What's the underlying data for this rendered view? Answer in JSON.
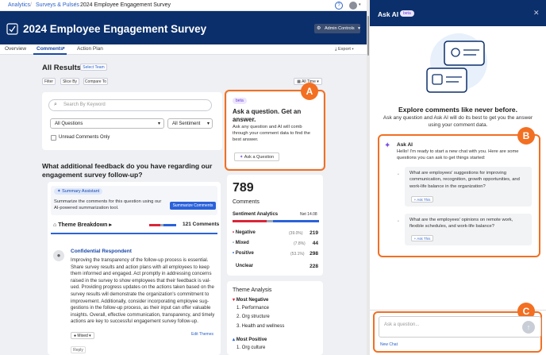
{
  "breadcrumb": {
    "items": [
      "Analytics",
      "Surveys & Pulses",
      "2024 Employee Engagement Survey"
    ]
  },
  "header": {
    "title": "2024 Employee Engagement Survey",
    "admin_controls": "Admin Controls"
  },
  "tabs": [
    {
      "label": "Overview"
    },
    {
      "label": "Comments"
    },
    {
      "label": "Action Plan"
    }
  ],
  "export_label": "Export",
  "results": {
    "title": "All Results",
    "select_team": "Select Team",
    "filters": [
      "Filter",
      "Slice By",
      "Compare To"
    ],
    "all_time": "All Time"
  },
  "search": {
    "placeholder": "Search By Keyword",
    "questions_select": "All Questions",
    "sentiment_select": "All Sentiment",
    "unread_label": "Unread Comments Only"
  },
  "ask_card": {
    "badge": "beta",
    "title": "Ask a question. Get an answer.",
    "body": "Ask any question and AI will comb through your comment data to find the best answer.",
    "button": "Ask a Question"
  },
  "question_heading": "What additional feedback do you have regarding our engagement survey follow-up?",
  "summary": {
    "title": "Summary Assistant",
    "text": "Summarize the comments for this question using our AI-powered summarization tool.",
    "button": "Summarize Comments"
  },
  "theme_breakdown": {
    "label": "Theme Breakdown",
    "count": "121 Comments"
  },
  "comment": {
    "author": "Confidential Respondent",
    "text": "Improving the transparency of the follow-up process is essential. Share survey results and action plans with all employees to keep them informed and engaged. Act promptly in addressing concerns raised in the survey to show employees that their feedback is val-ued. Providing progress updates on the actions taken based on the survey results will demonstrate the organization's commitment to improvement. Additionally, consider incorporating employee sug-gestions in the follow-up process, as their input can offer valuable insights. Overall, effective communication, transparency, and timely actions are key to successful engagement survey follow-up.",
    "tag": "Mixed",
    "reply": "Reply",
    "edit_themes": "Edit Themes"
  },
  "stats": {
    "total": "789",
    "total_label": "Comments",
    "sentiment_title": "Sentiment Analytics",
    "net": "Net 14.08",
    "rows": [
      {
        "label": "Negative",
        "pct": "(39.0%)",
        "val": "219"
      },
      {
        "label": "Mixed",
        "pct": "(7.8%)",
        "val": "44"
      },
      {
        "label": "Positive",
        "pct": "(53.1%)",
        "val": "298"
      },
      {
        "label": "Unclear",
        "pct": "",
        "val": "228"
      }
    ]
  },
  "themes": {
    "title": "Theme Analysis",
    "most_negative": "Most Negative",
    "neg": [
      "1. Performance",
      "2. Org structure",
      "3. Health and wellness"
    ],
    "most_positive": "Most Positive",
    "pos": [
      "1. Org culture"
    ]
  },
  "panel": {
    "title": "Ask AI",
    "badge": "beta",
    "explore_title": "Explore comments like never before.",
    "explore_text": "Ask any question and Ask AI will do its best to get you the answer using your comment data.",
    "ai_name": "Ask AI",
    "ai_intro": "Hello! I'm ready to start a new chat with you. Here are some questions you can ask to get things started:",
    "suggestions": [
      {
        "q": "What are employees' suggestions for improving communication, recognition, growth opportunities, and work-life balance in the organization?",
        "btn": "+ Ask This"
      },
      {
        "q": "What are the employees' opinions on remote work, flexible schedules, and work-life balance?",
        "btn": "+ Ask This"
      }
    ],
    "input_placeholder": "Ask a question...",
    "new_chat": "New Chat"
  },
  "callouts": [
    "A",
    "B",
    "C"
  ],
  "colors": {
    "navy": "#0b2f6b",
    "accent": "#f36f21",
    "negative": "#d9263a",
    "mixed": "#9aa7b8",
    "positive": "#2b62d9",
    "link": "#2a62c9"
  }
}
